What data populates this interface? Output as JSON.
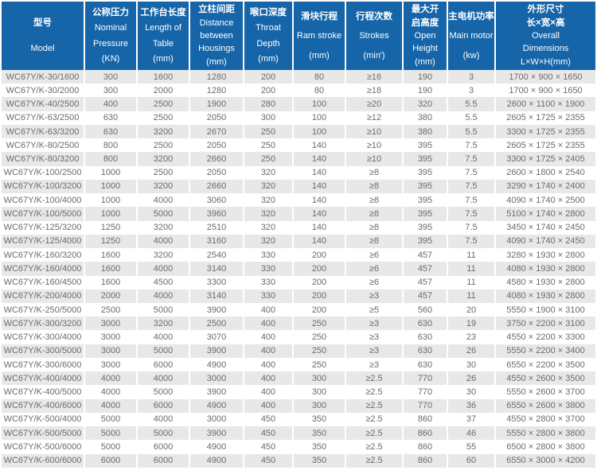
{
  "colors": {
    "header_bg": "#1565a8",
    "header_text": "#ffffff",
    "row_alt_bg": "#e8e8e8",
    "row_text": "#6b6b6b"
  },
  "table": {
    "headers": [
      {
        "id": "model",
        "lines": [
          "型号",
          "Model"
        ]
      },
      {
        "id": "pressure",
        "lines": [
          "公称压力",
          "Nominal",
          "Pressure",
          "(KN)"
        ]
      },
      {
        "id": "table-length",
        "lines": [
          "工作台长度",
          "Length of",
          "Table",
          "(mm)"
        ]
      },
      {
        "id": "housing-dist",
        "lines": [
          "立柱间距",
          "Distance",
          "between",
          "Housings",
          "(mm)"
        ]
      },
      {
        "id": "throat-depth",
        "lines": [
          "喉口深度",
          "Throat",
          "Depth",
          "(mm)"
        ]
      },
      {
        "id": "ram-stroke",
        "lines": [
          "滑块行程",
          "Ram stroke",
          "(mm)"
        ]
      },
      {
        "id": "strokes",
        "lines": [
          "行程次数",
          "Strokes",
          "(min')"
        ]
      },
      {
        "id": "open-height",
        "lines": [
          "最大开",
          "启高度",
          "Open",
          "Height",
          "(mm)"
        ]
      },
      {
        "id": "main-motor",
        "lines": [
          "主电机功率",
          "Main motor",
          "(kw)"
        ]
      },
      {
        "id": "dimensions",
        "lines": [
          "外形尺寸",
          "长×宽×高",
          "Overall",
          "Dimensions",
          "L×W×H(mm)"
        ]
      }
    ],
    "rows": [
      [
        "WC67Y/K-30/1600",
        "300",
        "1600",
        "1280",
        "200",
        "80",
        "≥16",
        "190",
        "3",
        "1700 × 900 × 1650"
      ],
      [
        "WC67Y/K-30/2000",
        "300",
        "2000",
        "1280",
        "200",
        "80",
        "≥18",
        "190",
        "3",
        "1700 × 900 × 1650"
      ],
      [
        "WC67Y/K-40/2500",
        "400",
        "2500",
        "1900",
        "280",
        "100",
        "≥20",
        "320",
        "5.5",
        "2600 × 1100 × 1900"
      ],
      [
        "WC67Y/K-63/2500",
        "630",
        "2500",
        "2050",
        "300",
        "100",
        "≥12",
        "380",
        "5.5",
        "2605 × 1725 × 2355"
      ],
      [
        "WC67Y/K-63/3200",
        "630",
        "3200",
        "2670",
        "250",
        "100",
        "≥10",
        "380",
        "5.5",
        "3300 × 1725 × 2355"
      ],
      [
        "WC67Y/K-80/2500",
        "800",
        "2500",
        "2050",
        "250",
        "140",
        "≥10",
        "395",
        "7.5",
        "2605 × 1725 × 2355"
      ],
      [
        "WC67Y/K-80/3200",
        "800",
        "3200",
        "2660",
        "250",
        "140",
        "≥10",
        "395",
        "7.5",
        "3300 × 1725 × 2405"
      ],
      [
        "WC67Y/K-100/2500",
        "1000",
        "2500",
        "2050",
        "320",
        "140",
        "≥8",
        "395",
        "7.5",
        "2600 × 1800 × 2540"
      ],
      [
        "WC67Y/K-100/3200",
        "1000",
        "3200",
        "2660",
        "320",
        "140",
        "≥8",
        "395",
        "7.5",
        "3290 × 1740 × 2400"
      ],
      [
        "WC67Y/K-100/4000",
        "1000",
        "4000",
        "3060",
        "320",
        "140",
        "≥8",
        "395",
        "7.5",
        "4090 × 1740 × 2500"
      ],
      [
        "WC67Y/K-100/5000",
        "1000",
        "5000",
        "3960",
        "320",
        "140",
        "≥8",
        "395",
        "7.5",
        "5100 × 1740 × 2800"
      ],
      [
        "WC67Y/K-125/3200",
        "1250",
        "3200",
        "2510",
        "320",
        "140",
        "≥8",
        "395",
        "7.5",
        "3450 × 1740 × 2450"
      ],
      [
        "WC67Y/K-125/4000",
        "1250",
        "4000",
        "3160",
        "320",
        "140",
        "≥8",
        "395",
        "7.5",
        "4090 × 1740 × 2450"
      ],
      [
        "WC67Y/K-160/3200",
        "1600",
        "3200",
        "2540",
        "330",
        "200",
        "≥6",
        "457",
        "11",
        "3280 × 1930 × 2800"
      ],
      [
        "WC67Y/K-160/4000",
        "1600",
        "4000",
        "3140",
        "330",
        "200",
        "≥6",
        "457",
        "11",
        "4080 × 1930 × 2800"
      ],
      [
        "WC67Y/K-160/4500",
        "1600",
        "4500",
        "3300",
        "330",
        "200",
        "≥6",
        "457",
        "11",
        "4580 × 1930 × 2800"
      ],
      [
        "WC67Y/K-200/4000",
        "2000",
        "4000",
        "3140",
        "330",
        "200",
        "≥3",
        "457",
        "11",
        "4080 × 1930 × 2800"
      ],
      [
        "WC67Y/K-250/5000",
        "2500",
        "5000",
        "3900",
        "400",
        "200",
        "≥5",
        "560",
        "20",
        "5550 × 1900 × 3100"
      ],
      [
        "WC67Y/K-300/3200",
        "3000",
        "3200",
        "2500",
        "400",
        "250",
        "≥3",
        "630",
        "19",
        "3750 × 2200 × 3100"
      ],
      [
        "WC67Y/K-300/4000",
        "3000",
        "4000",
        "3070",
        "400",
        "250",
        "≥3",
        "630",
        "23",
        "4550 × 2200 × 3300"
      ],
      [
        "WC67Y/K-300/5000",
        "3000",
        "5000",
        "3900",
        "400",
        "250",
        "≥3",
        "630",
        "26",
        "5550 × 2200 × 3400"
      ],
      [
        "WC67Y/K-300/6000",
        "3000",
        "6000",
        "4900",
        "400",
        "250",
        "≥3",
        "630",
        "30",
        "6550 × 2200 × 3500"
      ],
      [
        "WC67Y/K-400/4000",
        "4000",
        "4000",
        "3000",
        "400",
        "300",
        "≥2.5",
        "770",
        "26",
        "4550 × 2600 × 3500"
      ],
      [
        "WC67Y/K-400/5000",
        "4000",
        "5000",
        "3900",
        "400",
        "300",
        "≥2.5",
        "770",
        "30",
        "5550 × 2600 × 3700"
      ],
      [
        "WC67Y/K-400/6000",
        "4000",
        "6000",
        "4900",
        "400",
        "300",
        "≥2.5",
        "770",
        "36",
        "6550 × 2600 × 3800"
      ],
      [
        "WC67Y/K-500/4000",
        "5000",
        "4000",
        "3000",
        "450",
        "350",
        "≥2.5",
        "860",
        "37",
        "4550 × 2800 × 3700"
      ],
      [
        "WC67Y/K-500/5000",
        "5000",
        "5000",
        "3900",
        "450",
        "350",
        "≥2.5",
        "860",
        "46",
        "5550 × 2800 × 3800"
      ],
      [
        "WC67Y/K-500/6000",
        "5000",
        "6000",
        "4900",
        "450",
        "350",
        "≥2.5",
        "860",
        "55",
        "6500 × 2800 × 3800"
      ],
      [
        "WC67Y/K-600/6000",
        "6000",
        "6000",
        "4900",
        "450",
        "350",
        "≥2.5",
        "860",
        "60",
        "6550 × 3000 × 4200"
      ]
    ]
  }
}
